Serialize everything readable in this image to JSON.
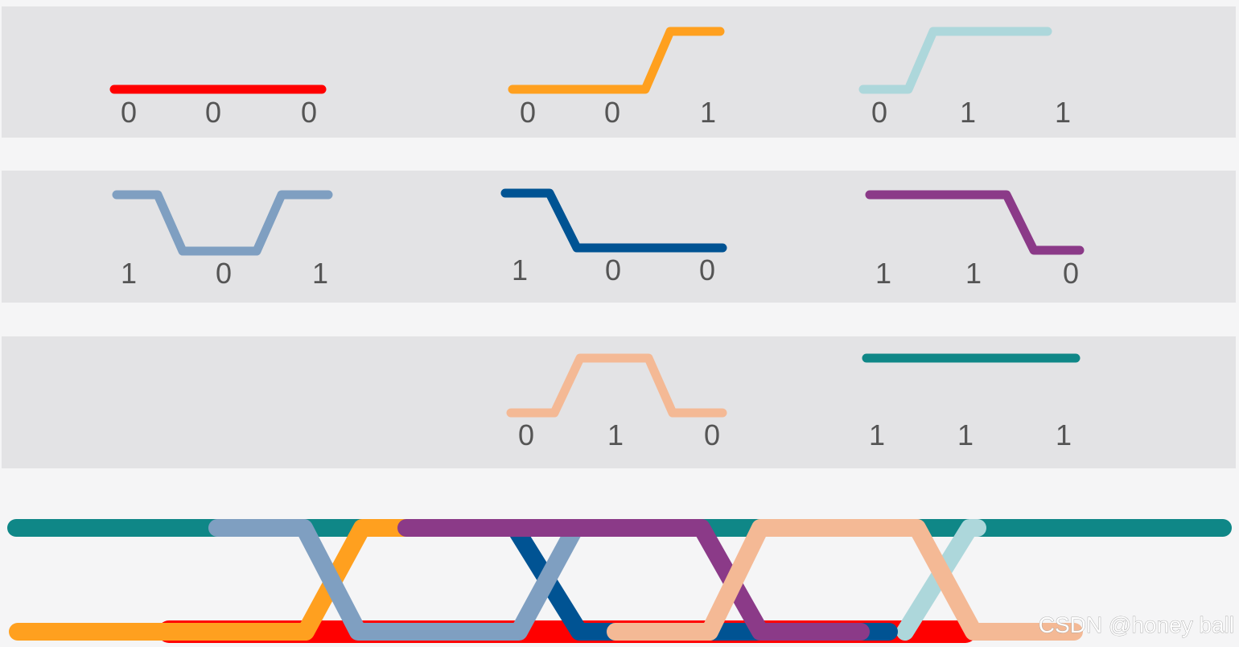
{
  "patterns": [
    {
      "id": "000",
      "bits": [
        "0",
        "0",
        "0"
      ],
      "color": "#ff0000"
    },
    {
      "id": "001",
      "bits": [
        "0",
        "0",
        "1"
      ],
      "color": "#ffa01f"
    },
    {
      "id": "011",
      "bits": [
        "0",
        "1",
        "1"
      ],
      "color": "#add7db"
    },
    {
      "id": "101",
      "bits": [
        "1",
        "0",
        "1"
      ],
      "color": "#7f9fc1"
    },
    {
      "id": "100",
      "bits": [
        "1",
        "0",
        "0"
      ],
      "color": "#005393"
    },
    {
      "id": "110",
      "bits": [
        "1",
        "1",
        "0"
      ],
      "color": "#8b3a88"
    },
    {
      "id": "010",
      "bits": [
        "0",
        "1",
        "0"
      ],
      "color": "#f4b995"
    },
    {
      "id": "111",
      "bits": [
        "1",
        "1",
        "1"
      ],
      "color": "#0f8787"
    }
  ],
  "colors": {
    "panel": "#e3e3e5",
    "background": "#f5f5f6",
    "digit": "#555555"
  },
  "watermark": "CSDN @honey ball"
}
